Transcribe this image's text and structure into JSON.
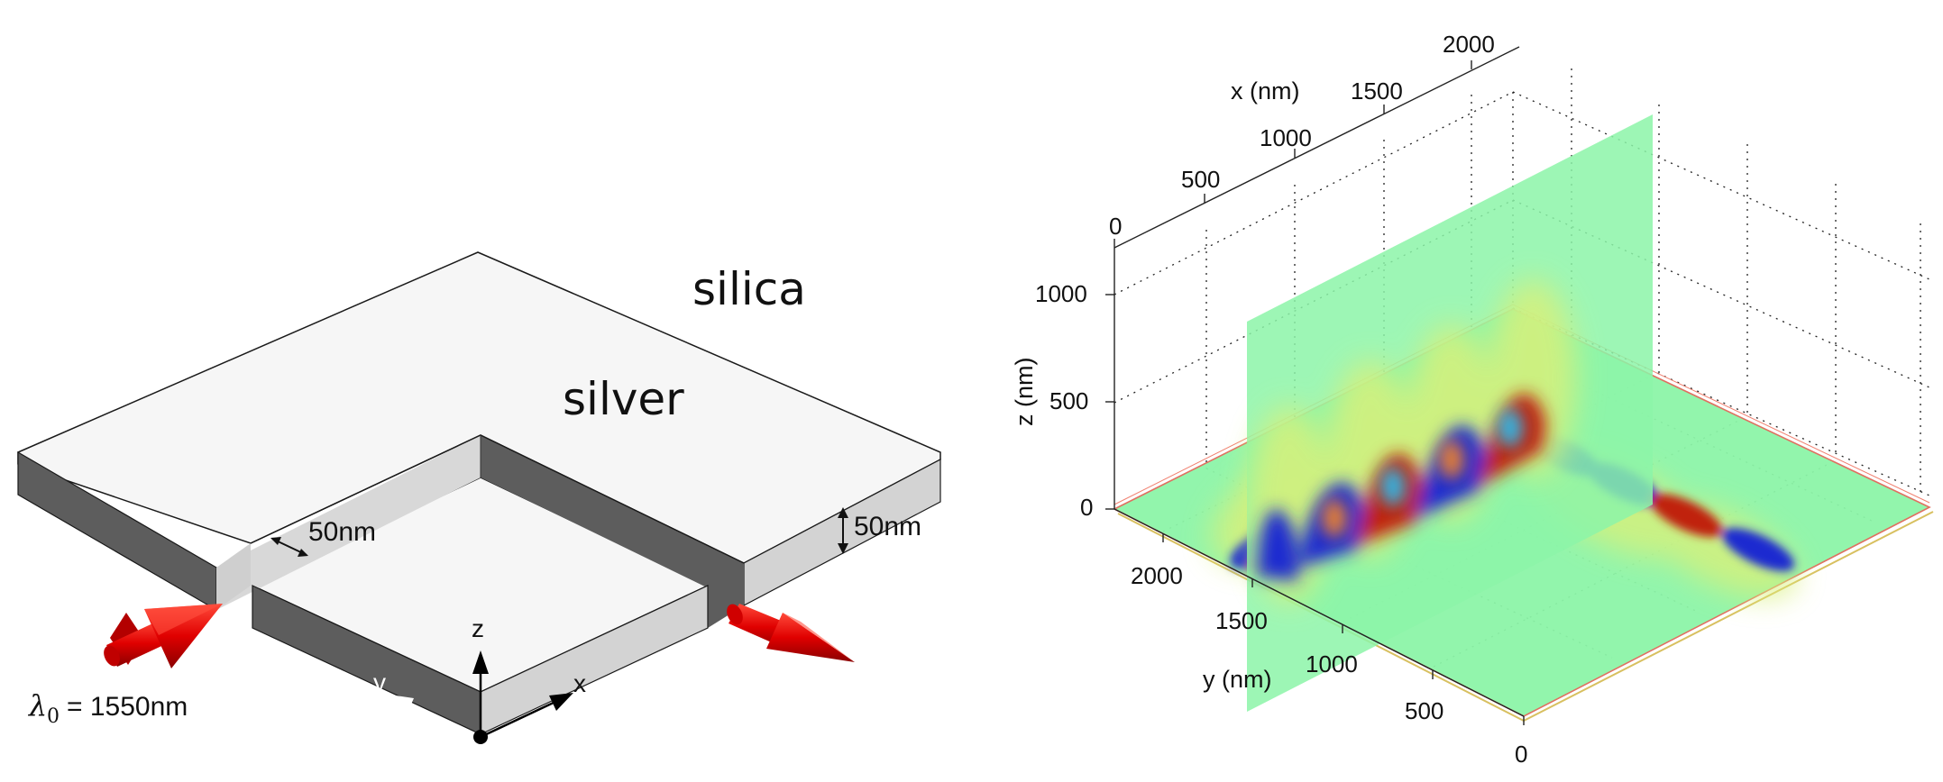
{
  "left_panel": {
    "materials": {
      "cladding": "silica",
      "metal": "silver"
    },
    "gap_width_label": "50nm",
    "thickness_label": "50nm",
    "wavelength_label": "= 1550nm",
    "wavelength_symbol": "λ",
    "wavelength_subscript": "0",
    "axes": {
      "x": "x",
      "y": "y",
      "z": "z"
    },
    "colors": {
      "top": "#f5f5f5",
      "front": "#d3d3d3",
      "side": "#5d5d5d",
      "edge": "#1a1a1a",
      "arrow": "#e00000"
    }
  },
  "right_panel": {
    "x_axis": {
      "label": "x (nm)",
      "ticks": [
        "0",
        "500",
        "1000",
        "1500",
        "2000"
      ]
    },
    "y_axis": {
      "label": "y (nm)",
      "ticks": [
        "0",
        "500",
        "1000",
        "1500",
        "2000"
      ]
    },
    "z_axis": {
      "label": "z (nm)",
      "ticks": [
        "0",
        "500",
        "1000"
      ]
    },
    "grid": true,
    "colormap": "jet",
    "background_color": "#8cf4a8"
  }
}
